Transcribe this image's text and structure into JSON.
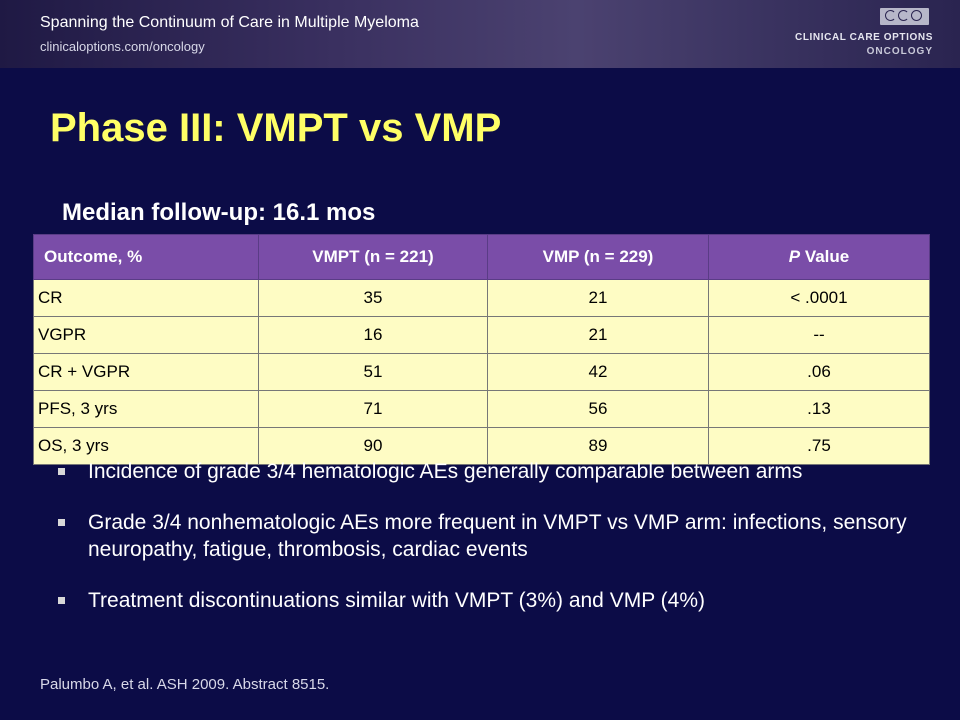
{
  "header": {
    "title": "Spanning the Continuum of Care in Multiple Myeloma",
    "url": "clinicaloptions.com/oncology",
    "logo_text": "CLINICAL CARE OPTIONS",
    "logo_subtext": "ONCOLOGY",
    "logo_icon": "cco-logo-mark"
  },
  "slide": {
    "title": "Phase III: VMPT vs VMP",
    "subtitle": "Median follow-up: 16.1 mos"
  },
  "table": {
    "headers": [
      "Outcome, %",
      "VMPT (n = 221)",
      "VMP (n = 229)",
      "P Value"
    ],
    "header_p": "P",
    "header_value": " Value",
    "rows": [
      [
        "CR",
        "35",
        "21",
        "< .0001"
      ],
      [
        "VGPR",
        "16",
        "21",
        "--"
      ],
      [
        "CR + VGPR",
        "51",
        "42",
        ".06"
      ],
      [
        "PFS, 3 yrs",
        "71",
        "56",
        ".13"
      ],
      [
        "OS, 3 yrs",
        "90",
        "89",
        ".75"
      ]
    ]
  },
  "bullets": [
    "Incidence of grade 3/4 hematologic AEs generally comparable between arms",
    "Grade 3/4 nonhematologic AEs more frequent in VMPT vs VMP arm: infections, sensory neuropathy, fatigue, thrombosis, cardiac events",
    "Treatment discontinuations similar with VMPT (3%) and VMP (4%)"
  ],
  "reference": "Palumbo A, et al. ASH 2009. Abstract 8515.",
  "colors": {
    "background": "#0c0c47",
    "title": "#ffff66",
    "table_header": "#7a4da8",
    "table_cell": "#fefcc4"
  }
}
